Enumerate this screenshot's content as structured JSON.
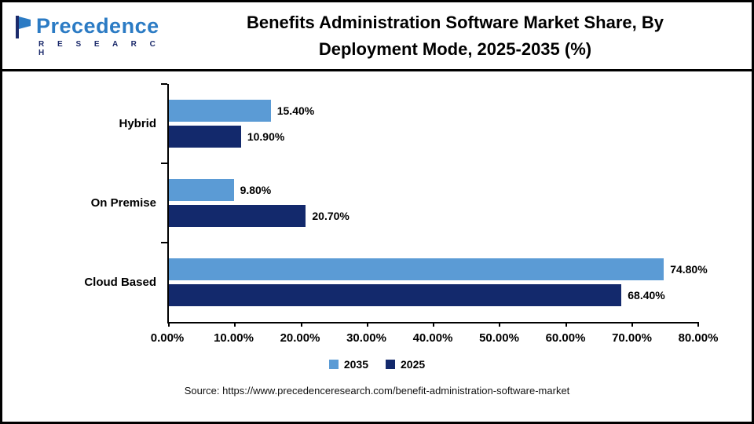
{
  "header": {
    "logo_name": "Precedence",
    "logo_subtitle": "R E S E A R C H"
  },
  "chart_data": {
    "type": "bar",
    "orientation": "horizontal",
    "title": "Benefits Administration Software Market Share, By Deployment Mode, 2025-2035 (%)",
    "title_lines": [
      "Benefits Administration Software Market Share, By",
      "Deployment Mode, 2025-2035 (%)"
    ],
    "categories": [
      "Hybrid",
      "On Premise",
      "Cloud Based"
    ],
    "series": [
      {
        "name": "2035",
        "color": "#5b9bd5",
        "values": [
          15.4,
          9.8,
          74.8
        ],
        "labels": [
          "15.40%",
          "9.80%",
          "74.80%"
        ]
      },
      {
        "name": "2025",
        "color": "#13296c",
        "values": [
          10.9,
          20.7,
          68.4
        ],
        "labels": [
          "10.90%",
          "20.70%",
          "68.40%"
        ]
      }
    ],
    "xlim": [
      0,
      80
    ],
    "x_tick_labels": [
      "0.00%",
      "10.00%",
      "20.00%",
      "30.00%",
      "40.00%",
      "50.00%",
      "60.00%",
      "70.00%",
      "80.00%"
    ],
    "grid": false,
    "legend_position": "bottom"
  },
  "footer": {
    "source": "Source: https://www.precedenceresearch.com/benefit-administration-software-market"
  }
}
